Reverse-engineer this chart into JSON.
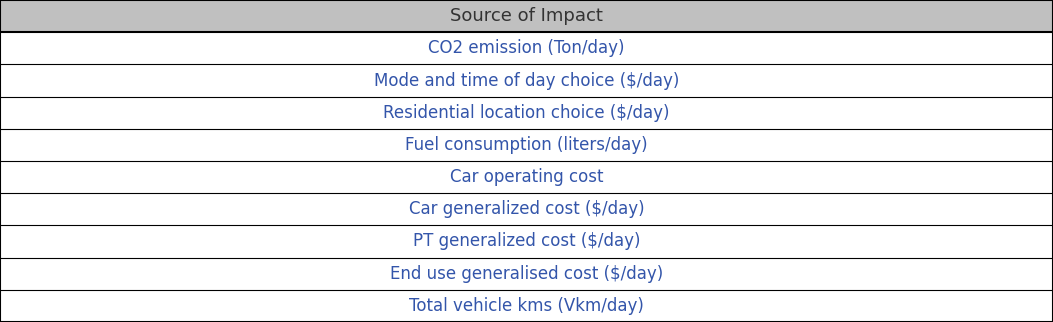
{
  "header": "Source of Impact",
  "rows": [
    "CO2 emission (Ton/day)",
    "Mode and time of day choice ($/day)",
    "Residential location choice ($/day)",
    "Fuel consumption (liters/day)",
    "Car operating cost",
    "Car generalized cost ($/day)",
    "PT generalized cost ($/day)",
    "End use generalised cost ($/day)",
    "Total vehicle kms (Vkm/day)"
  ],
  "header_bg_color": "#C0C0C0",
  "header_text_color": "#333333",
  "row_text_color": "#3355AA",
  "bg_color": "#FFFFFF",
  "border_color": "#000000",
  "header_fontsize": 13,
  "row_fontsize": 12,
  "figsize": [
    10.53,
    3.22
  ],
  "dpi": 100,
  "lw_thick": 1.5,
  "lw_thin": 0.8
}
